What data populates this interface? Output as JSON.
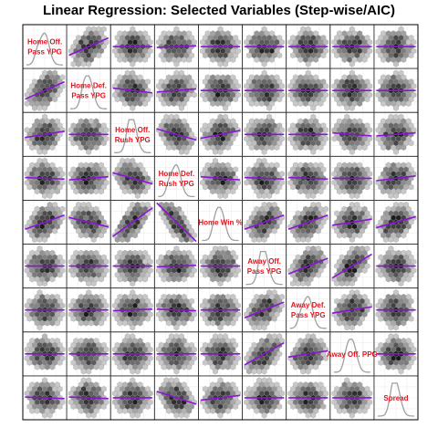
{
  "title": "Linear Regression: Selected Variables (Step-wise/AIC)",
  "colors": {
    "fit_line": "#8a14d6",
    "diag_label": "#e0141e",
    "density": "#a0a0a0",
    "hex_light": "#c8c8c8",
    "hex_dark": "#1a1a1a",
    "panel_border": "#333333",
    "grid": "#e8e8e8"
  },
  "chart_data": {
    "type": "scatter",
    "subtype": "scatterplot-matrix with hexbin cells, linear fit lines, and density diagonal",
    "title": "Linear Regression: Selected Variables (Step-wise/AIC)",
    "variables": [
      "Home Off.\nPass YPG",
      "Home Def.\nPass YPG",
      "Home Off.\nRush YPG",
      "Home Def.\nRush YPG",
      "Home Win %",
      "Away Off.\nPass YPG",
      "Away Def.\nPass YPG",
      "Away Off. PPG",
      "Spread"
    ],
    "fit_slopes": [
      [
        0,
        0.55,
        0.0,
        0.05,
        0.0,
        0.0,
        0.0,
        0.0,
        0.0
      ],
      [
        0.55,
        0,
        -0.15,
        0.1,
        0.0,
        0.0,
        0.0,
        0.0,
        0.0
      ],
      [
        0.2,
        0.0,
        0,
        -0.35,
        0.25,
        0.0,
        0.0,
        -0.1,
        0.1
      ],
      [
        -0.05,
        0.1,
        -0.35,
        0,
        -0.1,
        -0.05,
        -0.05,
        0.0,
        0.15
      ],
      [
        0.45,
        -0.3,
        0.9,
        -1.4,
        0,
        0.45,
        0.45,
        0.2,
        0.35
      ],
      [
        0.0,
        0.0,
        0.0,
        0.05,
        0.0,
        0,
        0.5,
        0.75,
        0.0
      ],
      [
        0.0,
        0.0,
        0.05,
        -0.05,
        0.0,
        0.5,
        0,
        0.2,
        0.0
      ],
      [
        0.0,
        0.0,
        0.0,
        0.0,
        0.0,
        0.7,
        0.2,
        0,
        0.0
      ],
      [
        -0.05,
        -0.05,
        0.0,
        -0.4,
        0.15,
        0.0,
        0.0,
        0.0,
        0
      ]
    ],
    "grid": true,
    "legend": "none"
  }
}
